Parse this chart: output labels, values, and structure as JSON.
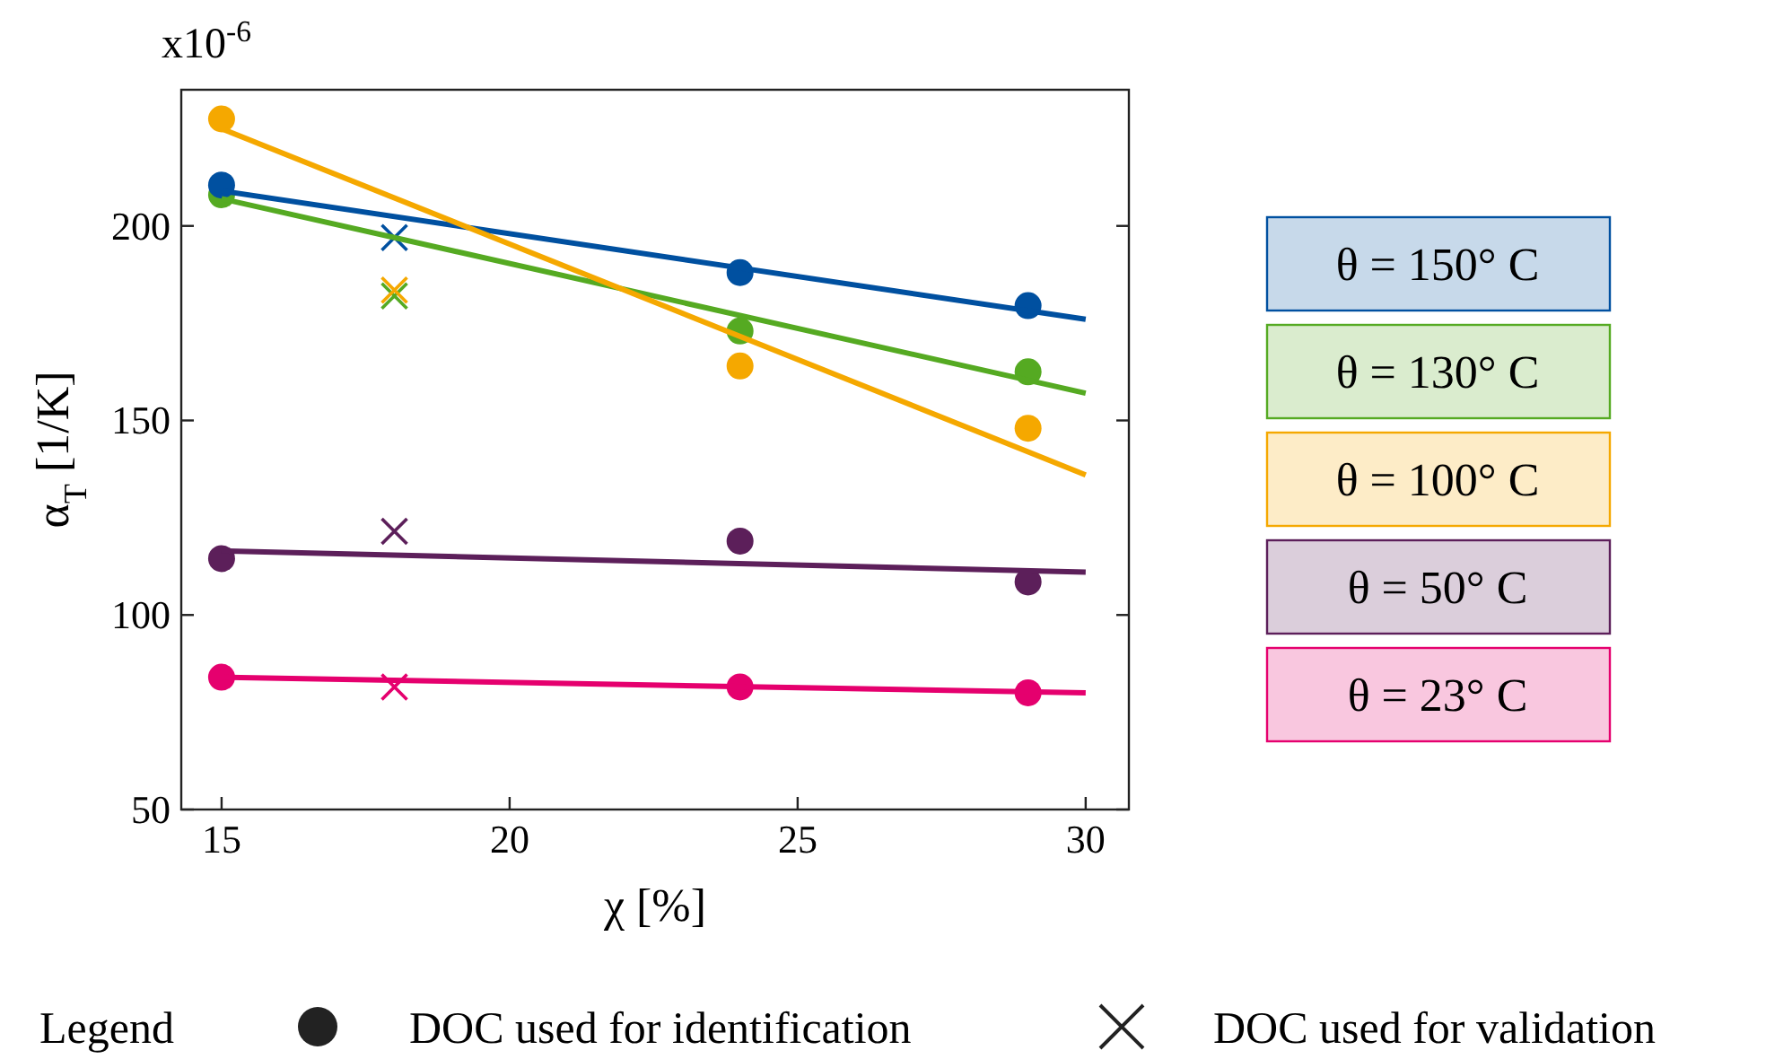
{
  "chart_data": {
    "type": "scatter",
    "xlabel": "χ [%]",
    "ylabel": "α$_{T}$ [1/K]",
    "xlim": [
      14.3,
      30.75
    ],
    "ylim": [
      50,
      235
    ],
    "xticks": [
      15,
      20,
      25,
      30
    ],
    "yticks": [
      50,
      100,
      150,
      200
    ],
    "grid": false,
    "legend": "right",
    "annotations": [
      "x10$^{-6}$",
      "Legend",
      "DOC used for identification",
      "DOC used for validation"
    ],
    "series": [
      {
        "name": "θ = 150° C",
        "type": "line",
        "color": "#0050a0",
        "x": [
          15,
          30
        ],
        "values": [
          209,
          176
        ]
      },
      {
        "name": "θ = 130° C",
        "type": "line",
        "color": "#55aa22",
        "x": [
          15,
          30
        ],
        "values": [
          207,
          157
        ]
      },
      {
        "name": "θ = 100° C",
        "type": "line",
        "color": "#f5a800",
        "x": [
          15,
          30
        ],
        "values": [
          225,
          136
        ]
      },
      {
        "name": "θ = 50° C",
        "type": "line",
        "color": "#5c1f5a",
        "x": [
          15,
          30
        ],
        "values": [
          116.5,
          111
        ]
      },
      {
        "name": "θ = 23° C",
        "type": "line",
        "color": "#e5006e",
        "x": [
          15,
          30
        ],
        "values": [
          84,
          80
        ]
      },
      {
        "marker": "circle",
        "color": "#55aa22",
        "x": [
          15,
          24,
          29
        ],
        "values": [
          208,
          173,
          162.5
        ]
      },
      {
        "marker": "circle",
        "color": "#0050a0",
        "x": [
          15,
          24,
          29
        ],
        "values": [
          210.5,
          188,
          179.5
        ]
      },
      {
        "marker": "circle",
        "color": "#f5a800",
        "x": [
          15,
          24,
          29
        ],
        "values": [
          227.5,
          164,
          148
        ]
      },
      {
        "marker": "circle",
        "color": "#5c1f5a",
        "x": [
          15,
          24,
          29
        ],
        "values": [
          114.5,
          119,
          108.5
        ]
      },
      {
        "marker": "circle",
        "color": "#e5006e",
        "x": [
          15,
          24,
          29
        ],
        "values": [
          84,
          81.5,
          80
        ]
      },
      {
        "marker": "cross",
        "color": "#0050a0",
        "x": [
          18
        ],
        "values": [
          197
        ]
      },
      {
        "marker": "cross",
        "color": "#55aa22",
        "x": [
          18
        ],
        "values": [
          182
        ]
      },
      {
        "marker": "cross",
        "color": "#f5a800",
        "x": [
          18
        ],
        "values": [
          183.5
        ]
      },
      {
        "marker": "cross",
        "color": "#5c1f5a",
        "x": [
          18
        ],
        "values": [
          121.5
        ]
      },
      {
        "marker": "cross",
        "color": "#e5006e",
        "x": [
          18
        ],
        "values": [
          81.5
        ]
      }
    ]
  }
}
